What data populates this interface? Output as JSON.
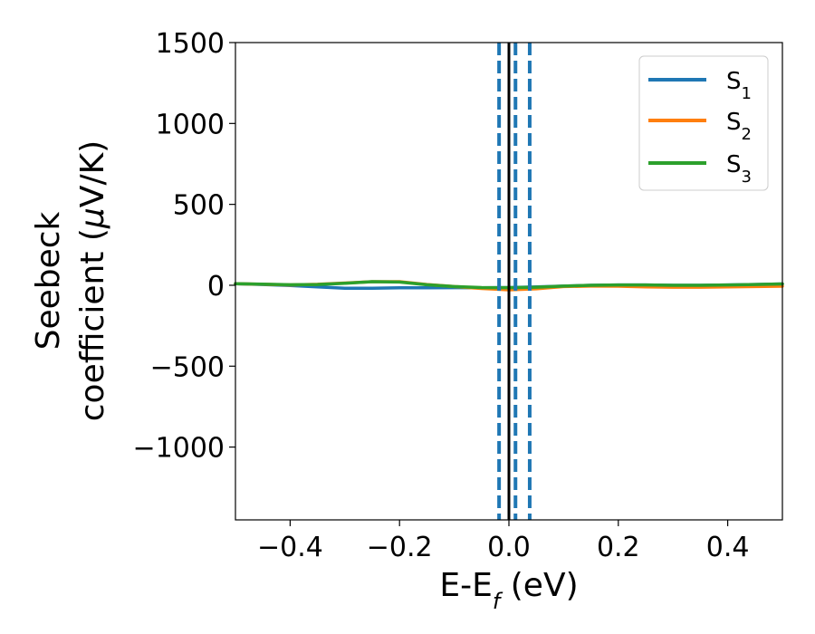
{
  "chart_data": {
    "type": "line",
    "title": "",
    "xlabel": "E-E",
    "xlabel_sub": "f",
    "xlabel_unit": " (eV)",
    "ylabel_line1": "Seebeck",
    "ylabel_line2": "coefficient  (",
    "ylabel_mu": "μ",
    "ylabel_unit": "V/K)",
    "xlim": [
      -0.5,
      0.5
    ],
    "ylim": [
      -1450,
      1500
    ],
    "xticks": [
      {
        "value": -0.4,
        "label": "−0.4"
      },
      {
        "value": -0.2,
        "label": "−0.2"
      },
      {
        "value": 0.0,
        "label": "0.0"
      },
      {
        "value": 0.2,
        "label": "0.2"
      },
      {
        "value": 0.4,
        "label": "0.4"
      }
    ],
    "yticks": [
      {
        "value": 1500,
        "label": "1500"
      },
      {
        "value": 1000,
        "label": "1000"
      },
      {
        "value": 500,
        "label": "500"
      },
      {
        "value": 0,
        "label": "0"
      },
      {
        "value": -500,
        "label": "−500"
      },
      {
        "value": -1000,
        "label": "−1000"
      }
    ],
    "grid": false,
    "legend_position": "top-right",
    "series": [
      {
        "name": "S",
        "sub": "1",
        "color": "#1f77b4",
        "x": [
          -0.5,
          -0.45,
          -0.4,
          -0.35,
          -0.3,
          -0.25,
          -0.2,
          -0.15,
          -0.1,
          -0.05,
          0.0,
          0.05,
          0.1,
          0.15,
          0.2,
          0.25,
          0.3,
          0.35,
          0.4,
          0.45,
          0.5
        ],
        "y": [
          10,
          5,
          -2,
          -10,
          -18,
          -18,
          -16,
          -16,
          -15,
          -16,
          -14,
          -10,
          -5,
          0,
          2,
          2,
          0,
          0,
          2,
          5,
          8
        ]
      },
      {
        "name": "S",
        "sub": "2",
        "color": "#ff7f0e",
        "x": [
          -0.5,
          -0.45,
          -0.4,
          -0.35,
          -0.3,
          -0.25,
          -0.2,
          -0.15,
          -0.1,
          -0.05,
          0.0,
          0.05,
          0.1,
          0.15,
          0.2,
          0.25,
          0.3,
          0.35,
          0.4,
          0.45,
          0.5
        ],
        "y": [
          10,
          6,
          2,
          6,
          14,
          22,
          22,
          5,
          -8,
          -20,
          -28,
          -22,
          -8,
          -5,
          -6,
          -10,
          -12,
          -12,
          -10,
          -8,
          -6
        ]
      },
      {
        "name": "S",
        "sub": "3",
        "color": "#2ca02c",
        "x": [
          -0.5,
          -0.45,
          -0.4,
          -0.35,
          -0.3,
          -0.25,
          -0.2,
          -0.15,
          -0.1,
          -0.05,
          0.0,
          0.05,
          0.1,
          0.15,
          0.2,
          0.25,
          0.3,
          0.35,
          0.4,
          0.45,
          0.5
        ],
        "y": [
          10,
          7,
          3,
          5,
          12,
          22,
          20,
          3,
          -8,
          -14,
          -15,
          -12,
          -5,
          0,
          2,
          2,
          0,
          0,
          2,
          5,
          8
        ]
      }
    ],
    "vlines": [
      {
        "x": -0.018,
        "style": "dashed",
        "color": "#1f77b4"
      },
      {
        "x": 0.0,
        "style": "solid",
        "color": "#000000"
      },
      {
        "x": 0.012,
        "style": "dashed",
        "color": "#1f77b4"
      },
      {
        "x": 0.038,
        "style": "dashed",
        "color": "#1f77b4"
      }
    ]
  }
}
